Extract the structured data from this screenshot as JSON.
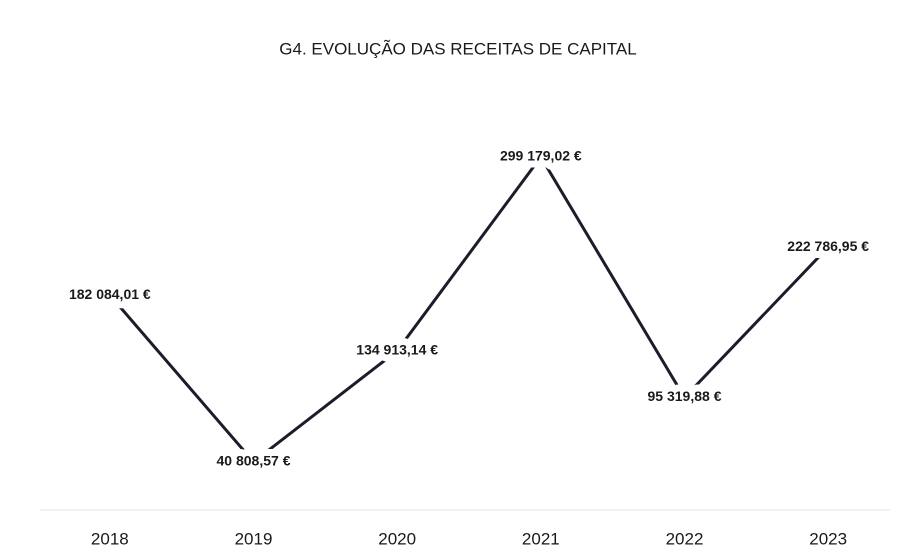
{
  "chart_data": {
    "type": "line",
    "title": "G4. EVOLUÇÃO DAS RECEITAS DE CAPITAL",
    "categories": [
      "2018",
      "2019",
      "2020",
      "2021",
      "2022",
      "2023"
    ],
    "values": [
      182084.01,
      40808.57,
      134913.14,
      299179.02,
      95319.88,
      222786.95
    ],
    "value_labels": [
      "182 084,01 €",
      "40 808,57 €",
      "134 913,14 €",
      "299 179,02 €",
      "95 319,88 €",
      "222 786,95 €"
    ],
    "color": "#1c1c2a"
  }
}
